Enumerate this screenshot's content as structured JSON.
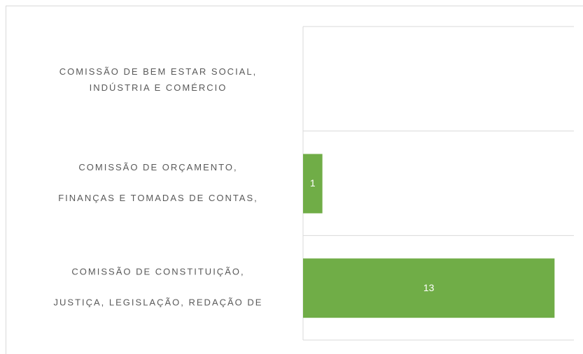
{
  "chart_data": {
    "type": "bar",
    "orientation": "horizontal",
    "categories": [
      [
        "COMISSÃO DE BEM ESTAR SOCIAL,",
        "INDÚSTRIA E COMÉRCIO"
      ],
      [
        "COMISSÃO DE ORÇAMENTO,",
        "FINANÇAS E TOMADAS DE CONTAS,"
      ],
      [
        "COMISSÃO DE CONSTITUIÇÃO,",
        "JUSTIÇA, LEGISLAÇÃO, REDAÇÃO DE"
      ]
    ],
    "values": [
      0,
      1,
      13
    ],
    "color": "#70ad47",
    "xlim": [
      0,
      14
    ],
    "grid": true
  }
}
